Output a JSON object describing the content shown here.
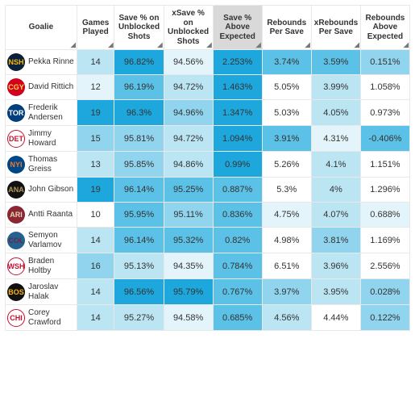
{
  "columns": [
    {
      "key": "goalie",
      "label": "Goalie",
      "sorted": false
    },
    {
      "key": "gp",
      "label": "Games Played",
      "sorted": false
    },
    {
      "key": "svpct",
      "label": "Save % on Unblocked Shots",
      "sorted": false
    },
    {
      "key": "xsvpct",
      "label": "xSave % on Unblocked Shots",
      "sorted": false
    },
    {
      "key": "above",
      "label": "Save % Above Expected",
      "sorted": true
    },
    {
      "key": "rbps",
      "label": "Rebounds Per Save",
      "sorted": false
    },
    {
      "key": "xrbps",
      "label": "xRebounds Per Save",
      "sorted": false
    },
    {
      "key": "rbae",
      "label": "Rebounds Above Expected",
      "sorted": false
    }
  ],
  "heatmap_palette": {
    "very_high": "#1ea7dd",
    "high": "#5cc1e6",
    "med": "#90d4ee",
    "low": "#bce5f4",
    "very_low": "#e4f4fb",
    "none": "#ffffff"
  },
  "rows": [
    {
      "goalie": "Pekka Rinne",
      "team_abbr": "NSH",
      "team_bg": "#0a1f3c",
      "team_fg": "#f9b800",
      "gp": {
        "v": "14",
        "c": "low"
      },
      "svpct": {
        "v": "96.82%",
        "c": "very_high"
      },
      "xsvpct": {
        "v": "94.56%",
        "c": "very_low"
      },
      "above": {
        "v": "2.253%",
        "c": "very_high"
      },
      "rbps": {
        "v": "3.74%",
        "c": "high"
      },
      "xrbps": {
        "v": "3.59%",
        "c": "high"
      },
      "rbae": {
        "v": "0.151%",
        "c": "med"
      }
    },
    {
      "goalie": "David Rittich",
      "team_abbr": "CGY",
      "team_bg": "#d2001c",
      "team_fg": "#ffd94a",
      "gp": {
        "v": "12",
        "c": "very_low"
      },
      "svpct": {
        "v": "96.19%",
        "c": "high"
      },
      "xsvpct": {
        "v": "94.72%",
        "c": "low"
      },
      "above": {
        "v": "1.463%",
        "c": "very_high"
      },
      "rbps": {
        "v": "5.05%",
        "c": "none"
      },
      "xrbps": {
        "v": "3.99%",
        "c": "low"
      },
      "rbae": {
        "v": "1.058%",
        "c": "none"
      }
    },
    {
      "goalie": "Frederik Andersen",
      "team_abbr": "TOR",
      "team_bg": "#003e7e",
      "team_fg": "#ffffff",
      "gp": {
        "v": "19",
        "c": "very_high"
      },
      "svpct": {
        "v": "96.3%",
        "c": "very_high"
      },
      "xsvpct": {
        "v": "94.96%",
        "c": "med"
      },
      "above": {
        "v": "1.347%",
        "c": "very_high"
      },
      "rbps": {
        "v": "5.03%",
        "c": "none"
      },
      "xrbps": {
        "v": "4.05%",
        "c": "low"
      },
      "rbae": {
        "v": "0.973%",
        "c": "none"
      }
    },
    {
      "goalie": "Jimmy Howard",
      "team_abbr": "DET",
      "team_bg": "#ffffff",
      "team_fg": "#c8102e",
      "gp": {
        "v": "15",
        "c": "med"
      },
      "svpct": {
        "v": "95.81%",
        "c": "med"
      },
      "xsvpct": {
        "v": "94.72%",
        "c": "low"
      },
      "above": {
        "v": "1.094%",
        "c": "very_high"
      },
      "rbps": {
        "v": "3.91%",
        "c": "high"
      },
      "xrbps": {
        "v": "4.31%",
        "c": "very_low"
      },
      "rbae": {
        "v": "-0.406%",
        "c": "high"
      }
    },
    {
      "goalie": "Thomas Greiss",
      "team_abbr": "NYI",
      "team_bg": "#00468b",
      "team_fg": "#f47920",
      "gp": {
        "v": "13",
        "c": "low"
      },
      "svpct": {
        "v": "95.85%",
        "c": "med"
      },
      "xsvpct": {
        "v": "94.86%",
        "c": "low"
      },
      "above": {
        "v": "0.99%",
        "c": "very_high"
      },
      "rbps": {
        "v": "5.26%",
        "c": "none"
      },
      "xrbps": {
        "v": "4.1%",
        "c": "low"
      },
      "rbae": {
        "v": "1.151%",
        "c": "none"
      }
    },
    {
      "goalie": "John Gibson",
      "team_abbr": "ANA",
      "team_bg": "#111111",
      "team_fg": "#b5985a",
      "gp": {
        "v": "19",
        "c": "very_high"
      },
      "svpct": {
        "v": "96.14%",
        "c": "high"
      },
      "xsvpct": {
        "v": "95.25%",
        "c": "high"
      },
      "above": {
        "v": "0.887%",
        "c": "high"
      },
      "rbps": {
        "v": "5.3%",
        "c": "none"
      },
      "xrbps": {
        "v": "4%",
        "c": "low"
      },
      "rbae": {
        "v": "1.296%",
        "c": "none"
      }
    },
    {
      "goalie": "Antti Raanta",
      "team_abbr": "ARI",
      "team_bg": "#8c2633",
      "team_fg": "#e2d6b5",
      "gp": {
        "v": "10",
        "c": "none"
      },
      "svpct": {
        "v": "95.95%",
        "c": "high"
      },
      "xsvpct": {
        "v": "95.11%",
        "c": "med"
      },
      "above": {
        "v": "0.836%",
        "c": "high"
      },
      "rbps": {
        "v": "4.75%",
        "c": "very_low"
      },
      "xrbps": {
        "v": "4.07%",
        "c": "low"
      },
      "rbae": {
        "v": "0.688%",
        "c": "very_low"
      }
    },
    {
      "goalie": "Semyon Varlamov",
      "team_abbr": "COL",
      "team_bg": "#236192",
      "team_fg": "#6f263d",
      "gp": {
        "v": "14",
        "c": "low"
      },
      "svpct": {
        "v": "96.14%",
        "c": "high"
      },
      "xsvpct": {
        "v": "95.32%",
        "c": "high"
      },
      "above": {
        "v": "0.82%",
        "c": "high"
      },
      "rbps": {
        "v": "4.98%",
        "c": "none"
      },
      "xrbps": {
        "v": "3.81%",
        "c": "med"
      },
      "rbae": {
        "v": "1.169%",
        "c": "none"
      }
    },
    {
      "goalie": "Braden Holtby",
      "team_abbr": "WSH",
      "team_bg": "#ffffff",
      "team_fg": "#c8102e",
      "gp": {
        "v": "16",
        "c": "med"
      },
      "svpct": {
        "v": "95.13%",
        "c": "low"
      },
      "xsvpct": {
        "v": "94.35%",
        "c": "very_low"
      },
      "above": {
        "v": "0.784%",
        "c": "high"
      },
      "rbps": {
        "v": "6.51%",
        "c": "none"
      },
      "xrbps": {
        "v": "3.96%",
        "c": "low"
      },
      "rbae": {
        "v": "2.556%",
        "c": "none"
      }
    },
    {
      "goalie": "Jaroslav Halak",
      "team_abbr": "BOS",
      "team_bg": "#111111",
      "team_fg": "#fcb514",
      "gp": {
        "v": "14",
        "c": "low"
      },
      "svpct": {
        "v": "96.56%",
        "c": "very_high"
      },
      "xsvpct": {
        "v": "95.79%",
        "c": "very_high"
      },
      "above": {
        "v": "0.767%",
        "c": "high"
      },
      "rbps": {
        "v": "3.97%",
        "c": "med"
      },
      "xrbps": {
        "v": "3.95%",
        "c": "low"
      },
      "rbae": {
        "v": "0.028%",
        "c": "med"
      }
    },
    {
      "goalie": "Corey Crawford",
      "team_abbr": "CHI",
      "team_bg": "#ffffff",
      "team_fg": "#cf0a2c",
      "gp": {
        "v": "14",
        "c": "low"
      },
      "svpct": {
        "v": "95.27%",
        "c": "low"
      },
      "xsvpct": {
        "v": "94.58%",
        "c": "very_low"
      },
      "above": {
        "v": "0.685%",
        "c": "high"
      },
      "rbps": {
        "v": "4.56%",
        "c": "low"
      },
      "xrbps": {
        "v": "4.44%",
        "c": "none"
      },
      "rbae": {
        "v": "0.122%",
        "c": "med"
      }
    }
  ]
}
